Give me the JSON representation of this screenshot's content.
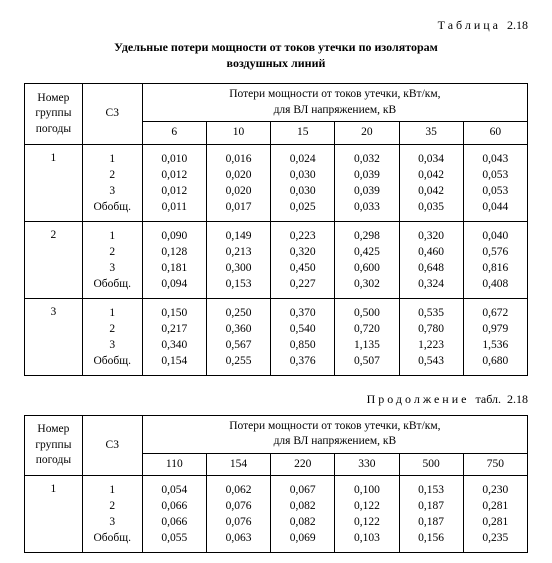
{
  "labels": {
    "table_word": "Таблица",
    "table_no": "2.18",
    "title_l1": "Удельные потери мощности от токов утечки по изоляторам",
    "title_l2": "воздушных линий",
    "hdr_group": "Номер группы погоды",
    "hdr_c3": "С3",
    "hdr_loss_l1": "Потери мощности от токов утечки, кВт/км,",
    "hdr_loss_l2": "для ВЛ напряжением, кВ",
    "cont_word": "Продолжение",
    "cont_word2": "табл.",
    "cont_no": "2.18"
  },
  "t1": {
    "volts": [
      "6",
      "10",
      "15",
      "20",
      "35",
      "60"
    ],
    "groups": [
      {
        "g": "1",
        "c3": [
          "1",
          "2",
          "3",
          "Обобщ."
        ],
        "d": [
          [
            "0,010",
            "0,016",
            "0,024",
            "0,032",
            "0,034",
            "0,043"
          ],
          [
            "0,012",
            "0,020",
            "0,030",
            "0,039",
            "0,042",
            "0,053"
          ],
          [
            "0,012",
            "0,020",
            "0,030",
            "0,039",
            "0,042",
            "0,053"
          ],
          [
            "0,011",
            "0,017",
            "0,025",
            "0,033",
            "0,035",
            "0,044"
          ]
        ]
      },
      {
        "g": "2",
        "c3": [
          "1",
          "2",
          "3",
          "Обобщ."
        ],
        "d": [
          [
            "0,090",
            "0,149",
            "0,223",
            "0,298",
            "0,320",
            "0,040"
          ],
          [
            "0,128",
            "0,213",
            "0,320",
            "0,425",
            "0,460",
            "0,576"
          ],
          [
            "0,181",
            "0,300",
            "0,450",
            "0,600",
            "0,648",
            "0,816"
          ],
          [
            "0,094",
            "0,153",
            "0,227",
            "0,302",
            "0,324",
            "0,408"
          ]
        ]
      },
      {
        "g": "3",
        "c3": [
          "1",
          "2",
          "3",
          "Обобщ."
        ],
        "d": [
          [
            "0,150",
            "0,250",
            "0,370",
            "0,500",
            "0,535",
            "0,672"
          ],
          [
            "0,217",
            "0,360",
            "0,540",
            "0,720",
            "0,780",
            "0,979"
          ],
          [
            "0,340",
            "0,567",
            "0,850",
            "1,135",
            "1,223",
            "1,536"
          ],
          [
            "0,154",
            "0,255",
            "0,376",
            "0,507",
            "0,543",
            "0,680"
          ]
        ]
      }
    ]
  },
  "t2": {
    "volts": [
      "110",
      "154",
      "220",
      "330",
      "500",
      "750"
    ],
    "groups": [
      {
        "g": "1",
        "c3": [
          "1",
          "2",
          "3",
          "Обобщ."
        ],
        "d": [
          [
            "0,054",
            "0,062",
            "0,067",
            "0,100",
            "0,153",
            "0,230"
          ],
          [
            "0,066",
            "0,076",
            "0,082",
            "0,122",
            "0,187",
            "0,281"
          ],
          [
            "0,066",
            "0,076",
            "0,082",
            "0,122",
            "0,187",
            "0,281"
          ],
          [
            "0,055",
            "0,063",
            "0,069",
            "0,103",
            "0,156",
            "0,235"
          ]
        ]
      }
    ]
  }
}
